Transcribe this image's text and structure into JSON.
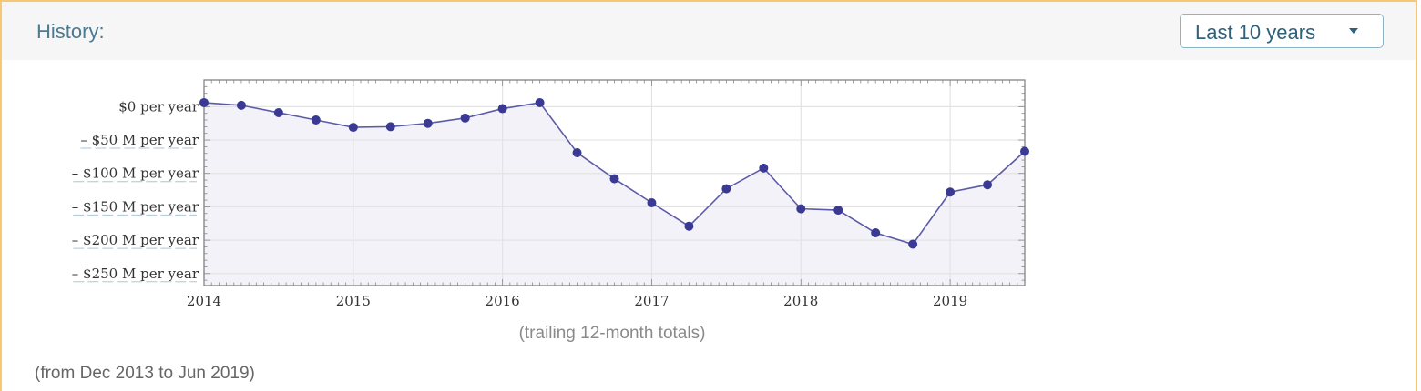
{
  "header": {
    "title": "History:",
    "range_select": "Last 10 years"
  },
  "chart_data": {
    "type": "line",
    "subtitle": "(trailing 12-month totals)",
    "x_ticks": [
      "2014",
      "2015",
      "2016",
      "2017",
      "2018",
      "2019"
    ],
    "y_ticks": [
      {
        "value": 0,
        "label": "$0 per year"
      },
      {
        "value": -50,
        "label": "– $50 M per year"
      },
      {
        "value": -100,
        "label": "– $100 M per year"
      },
      {
        "value": -150,
        "label": "– $150 M per year"
      },
      {
        "value": -200,
        "label": "– $200 M per year"
      },
      {
        "value": -250,
        "label": "– $250 M per year"
      }
    ],
    "xlim": [
      2014,
      2019.5
    ],
    "ylim": [
      -268,
      40
    ],
    "grid": true,
    "series": [
      {
        "x": [
          2014.0,
          2014.25,
          2014.5,
          2014.75,
          2015.0,
          2015.25,
          2015.5,
          2015.75,
          2016.0,
          2016.25,
          2016.5,
          2016.75,
          2017.0,
          2017.25,
          2017.5,
          2017.75,
          2018.0,
          2018.25,
          2018.5,
          2018.75,
          2019.0,
          2019.25,
          2019.5
        ],
        "y": [
          6,
          2,
          -9,
          -20,
          -31,
          -30,
          -25,
          -17,
          -3,
          6,
          -69,
          -108,
          -144,
          -179,
          -123,
          -92,
          -153,
          -155,
          -189,
          -206,
          -128,
          -117,
          -67
        ]
      }
    ],
    "line_color": "#5b5ba8",
    "marker_color": "#3a3a94",
    "fill_color": "#f3f2f8"
  },
  "footer": {
    "range_note": "(from Dec 2013 to Jun 2019)"
  }
}
